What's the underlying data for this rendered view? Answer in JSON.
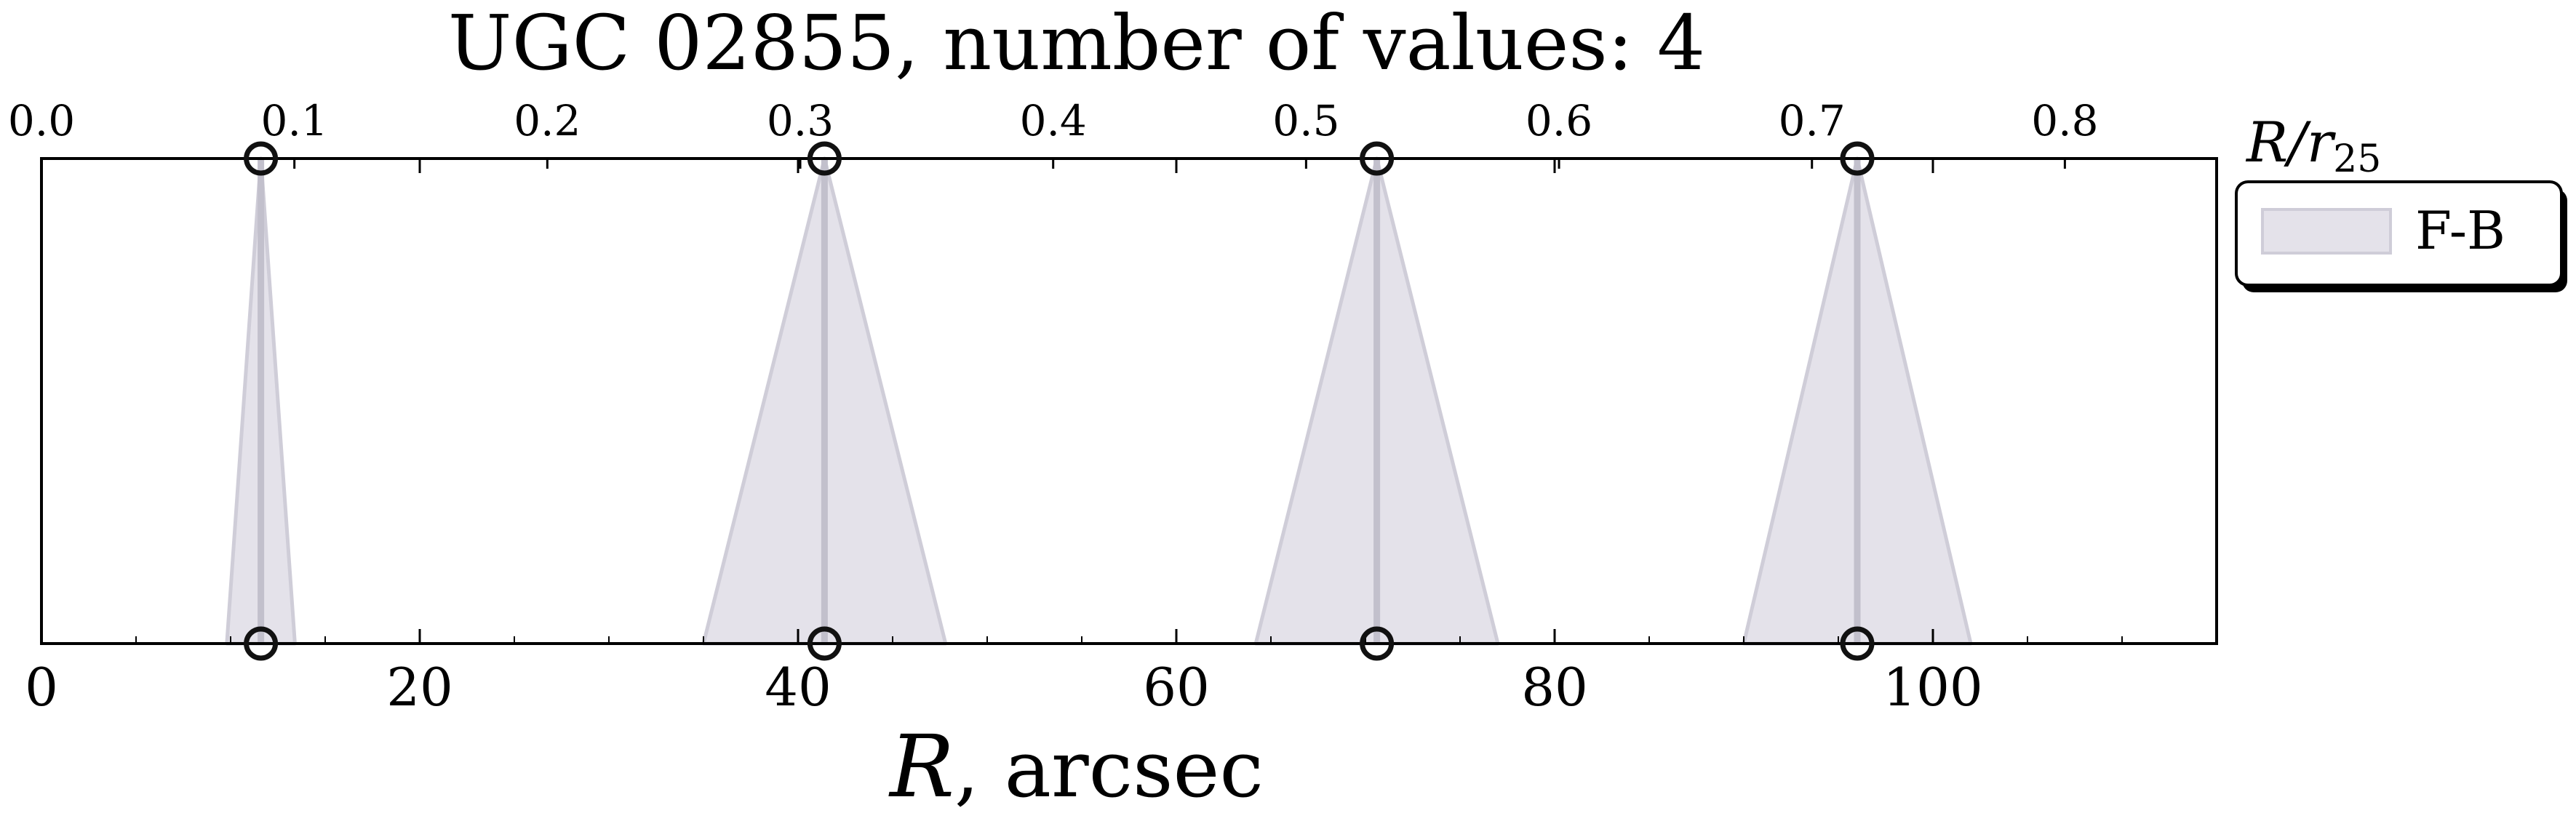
{
  "chart_data": {
    "type": "scatter",
    "title": "UGC 02855, number of values: 4",
    "xlabel_main": "R",
    "xlabel_rest": ", arcsec",
    "top_axis_label_main": "R/r",
    "top_axis_label_sub": "25",
    "x_bottom": {
      "range": [
        0,
        115
      ],
      "ticks": [
        0,
        20,
        40,
        60,
        80,
        100
      ]
    },
    "x_top": {
      "range": [
        0.0,
        0.86
      ],
      "ticks": [
        0.0,
        0.1,
        0.2,
        0.3,
        0.4,
        0.5,
        0.6,
        0.7,
        0.8
      ],
      "tick_labels": [
        "0.0",
        "0.1",
        "0.2",
        "0.3",
        "0.4",
        "0.5",
        "0.6",
        "0.7",
        "0.8"
      ]
    },
    "grid": false,
    "legend_placement": "outside-top-right",
    "series": [
      {
        "name": "F-B",
        "color": "#d0cddc",
        "points": [
          {
            "x": 11.6,
            "half_width": 1.8
          },
          {
            "x": 41.4,
            "half_width": 6.4
          },
          {
            "x": 70.6,
            "half_width": 6.4
          },
          {
            "x": 96.0,
            "half_width": 6.0
          }
        ]
      }
    ],
    "colors": {
      "fill": "#e4e2ea",
      "edge": "#cfcdd8",
      "stem": "#c2c0cc",
      "marker": "#111111"
    }
  }
}
